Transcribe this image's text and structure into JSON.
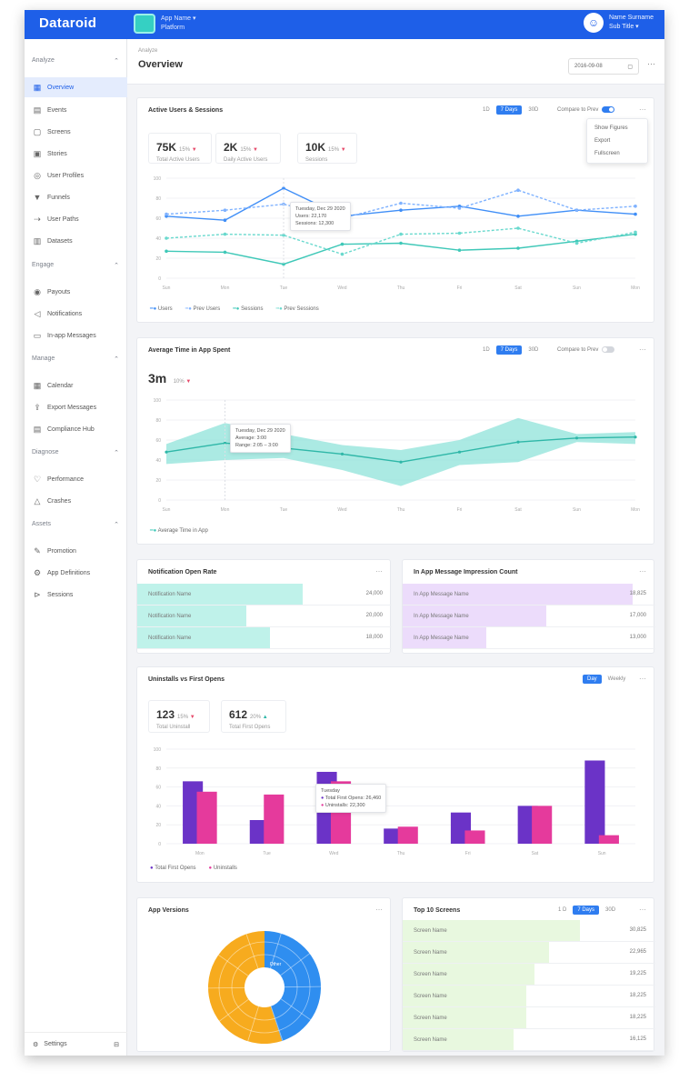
{
  "topbar": {
    "logo": "Dataroid",
    "app_name": "App Name ▾",
    "app_sub": "Platform",
    "user_name": "Name Surname",
    "user_sub": "Sub Title ▾"
  },
  "sidebar": {
    "sections": [
      {
        "label": "Analyze",
        "top": 20
      },
      {
        "label": "Engage",
        "top": 245
      },
      {
        "label": "Manage",
        "top": 348
      },
      {
        "label": "Diagnose",
        "top": 451
      },
      {
        "label": "Assets",
        "top": 530
      }
    ],
    "items": [
      {
        "label": "Overview",
        "icon": "▦",
        "top": 42,
        "active": true
      },
      {
        "label": "Events",
        "icon": "▤",
        "top": 67
      },
      {
        "label": "Screens",
        "icon": "▢",
        "top": 91
      },
      {
        "label": "Stories",
        "icon": "▣",
        "top": 115
      },
      {
        "label": "User Profiles",
        "icon": "◎",
        "top": 139
      },
      {
        "label": "Funnels",
        "icon": "▼",
        "top": 163
      },
      {
        "label": "User Paths",
        "icon": "⇢",
        "top": 187
      },
      {
        "label": "Datasets",
        "icon": "▥",
        "top": 211
      },
      {
        "label": "Payouts",
        "icon": "◉",
        "top": 267
      },
      {
        "label": "Notifications",
        "icon": "◁",
        "top": 291
      },
      {
        "label": "In-app Messages",
        "icon": "▭",
        "top": 315
      },
      {
        "label": "Calendar",
        "icon": "▦",
        "top": 370
      },
      {
        "label": "Export Messages",
        "icon": "⇪",
        "top": 394
      },
      {
        "label": "Compliance Hub",
        "icon": "▤",
        "top": 418
      },
      {
        "label": "Performance",
        "icon": "♡",
        "top": 473
      },
      {
        "label": "Crashes",
        "icon": "△",
        "top": 497
      },
      {
        "label": "Promotion",
        "icon": "✎",
        "top": 552
      },
      {
        "label": "App Definitions",
        "icon": "⚙",
        "top": 576
      },
      {
        "label": "Sessions",
        "icon": "⊳",
        "top": 600
      }
    ],
    "settings": "Settings"
  },
  "header": {
    "breadcrumb": "Analyze",
    "title": "Overview",
    "date": "2016-09-08"
  },
  "card1": {
    "title": "Active Users & Sessions",
    "seg": [
      "1D",
      "7 Days",
      "30D"
    ],
    "compare": "Compare to Prev",
    "menu": [
      "Show Figures",
      "Export",
      "Fullscreen"
    ],
    "kpis": [
      {
        "value": "75K",
        "delta": "15%",
        "label": "Total Active Users"
      },
      {
        "value": "2K",
        "delta": "15%",
        "label": "Daily Active Users"
      },
      {
        "value": "10K",
        "delta": "15%",
        "label": "Sessions"
      }
    ],
    "legend": [
      "Users",
      "Prev Users",
      "Sessions",
      "Prev Sessions"
    ],
    "tooltip": {
      "title": "Tuesday, Dec 29 2020",
      "line1": "Users: 22,170",
      "line2": "Sessions: 12,300"
    }
  },
  "card2": {
    "title": "Average Time in App Spent",
    "seg": [
      "1D",
      "7 Days",
      "30D"
    ],
    "compare": "Compare to Prev",
    "kpi": {
      "value": "3m",
      "delta": "10%"
    },
    "legend": [
      "Average Time in App"
    ],
    "tooltip": {
      "title": "Tuesday, Dec 29 2020",
      "line1": "Average: 3:00",
      "line2": "Range: 2:05 – 3:00"
    }
  },
  "card3": {
    "title": "Notification Open Rate",
    "rows": [
      {
        "label": "Notification Name",
        "value": "24,000",
        "pct": 0.65
      },
      {
        "label": "Notification Name",
        "value": "20,000",
        "pct": 0.43
      },
      {
        "label": "Notification Name",
        "value": "18,000",
        "pct": 0.52
      }
    ]
  },
  "card4": {
    "title": "In App Message Impression Count",
    "rows": [
      {
        "label": "In App Message Name",
        "value": "18,825",
        "pct": 0.91
      },
      {
        "label": "In App Message Name",
        "value": "17,000",
        "pct": 0.57
      },
      {
        "label": "In App Message Name",
        "value": "13,000",
        "pct": 0.33
      }
    ]
  },
  "card5": {
    "title": "Uninstalls vs First Opens",
    "seg": [
      "Day",
      "Weekly"
    ],
    "kpis": [
      {
        "value": "123",
        "delta": "15%",
        "dir": "dn",
        "label": "Total Uninstall"
      },
      {
        "value": "612",
        "delta": "20%",
        "dir": "up",
        "label": "Total First Opens"
      }
    ],
    "legend": [
      "Total First Opens",
      "Uninstalls"
    ],
    "tooltip": {
      "title": "Tuesday",
      "line1": "Total First Opens: 26,460",
      "line2": "Uninstalls: 22,300"
    }
  },
  "card6": {
    "title": "App Versions",
    "inner_label": "Other"
  },
  "card7": {
    "title": "Top 10 Screens",
    "seg": [
      "1 D",
      "7 Days",
      "30D"
    ],
    "rows": [
      {
        "label": "Screen Name",
        "value": "30,825",
        "pct": 0.7
      },
      {
        "label": "Screen Name",
        "value": "22,965",
        "pct": 0.58
      },
      {
        "label": "Screen Name",
        "value": "19,225",
        "pct": 0.52
      },
      {
        "label": "Screen Name",
        "value": "18,225",
        "pct": 0.49
      },
      {
        "label": "Screen Name",
        "value": "18,225",
        "pct": 0.49
      },
      {
        "label": "Screen Name",
        "value": "16,125",
        "pct": 0.44
      }
    ]
  },
  "chart_data": [
    {
      "type": "line",
      "categories": [
        "Sun",
        "Mon",
        "Tue",
        "Wed",
        "Thu",
        "Fri",
        "Sat",
        "Sun",
        "Mon"
      ],
      "ylim": [
        0,
        100
      ],
      "series": [
        {
          "name": "Users",
          "values": [
            62,
            58,
            90,
            62,
            68,
            72,
            62,
            68,
            64
          ],
          "color": "#3f8ef7"
        },
        {
          "name": "Prev Users",
          "values": [
            64,
            68,
            74,
            60,
            75,
            70,
            88,
            68,
            72
          ],
          "color": "#7fb2ff"
        },
        {
          "name": "Sessions",
          "values": [
            27,
            26,
            14,
            34,
            35,
            28,
            30,
            37,
            44
          ],
          "color": "#3fc8b8"
        },
        {
          "name": "Prev Sessions",
          "values": [
            40,
            44,
            43,
            24,
            44,
            45,
            50,
            35,
            46
          ],
          "color": "#6ad9ce"
        }
      ]
    },
    {
      "type": "area",
      "categories": [
        "Sun",
        "Mon",
        "Tue",
        "Wed",
        "Thu",
        "Fri",
        "Sat",
        "Sun",
        "Mon"
      ],
      "ylim": [
        0,
        100
      ],
      "series": [
        {
          "name": "Average Time in App",
          "values": [
            48,
            57,
            52,
            46,
            38,
            48,
            58,
            62,
            63
          ],
          "low": [
            36,
            40,
            42,
            30,
            14,
            35,
            38,
            58,
            56
          ],
          "high": [
            56,
            77,
            66,
            55,
            50,
            60,
            82,
            66,
            68
          ],
          "color": "#3fc8b8"
        }
      ]
    },
    {
      "type": "bar",
      "categories": [
        "Mon",
        "Tue",
        "Wed",
        "Thu",
        "Fri",
        "Sat",
        "Sun"
      ],
      "ylim": [
        0,
        100
      ],
      "series": [
        {
          "name": "Total First Opens",
          "values": [
            66,
            25,
            76,
            16,
            33,
            40,
            88
          ],
          "color": "#6b33c7"
        },
        {
          "name": "Uninstalls",
          "values": [
            55,
            52,
            66,
            18,
            14,
            40,
            9
          ],
          "color": "#e53a9c"
        }
      ]
    },
    {
      "type": "pie",
      "series": [
        {
          "name": "Versions",
          "values": [
            45,
            55
          ],
          "colors": [
            "#2f8ef0",
            "#f7ab1e"
          ]
        }
      ]
    }
  ]
}
